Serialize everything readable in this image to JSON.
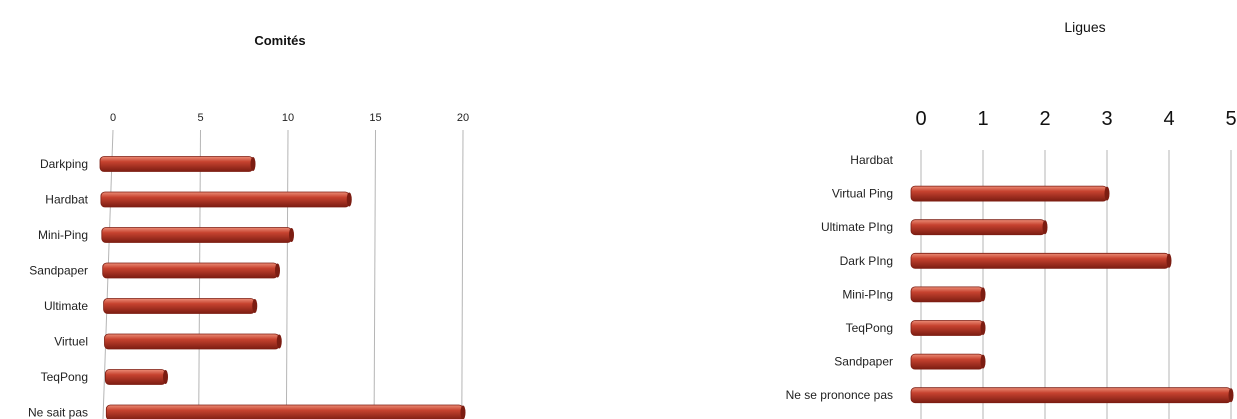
{
  "colors": {
    "bar": "#c6422f",
    "bar_light": "#ec8d77",
    "bar_dark": "#7c1d12",
    "grid": "#b5b5b5"
  },
  "chart_data": [
    {
      "type": "bar",
      "orientation": "horizontal",
      "title": "Comités",
      "categories": [
        "Darkping",
        "Hardbat",
        "Mini-Ping",
        "Sandpaper",
        "Ultimate",
        "Virtuel",
        "TeqPong",
        "Ne sait pas"
      ],
      "values": [
        8,
        13.5,
        10.2,
        9.4,
        8.1,
        9.5,
        3,
        20
      ],
      "xlim": [
        0,
        20
      ],
      "ticks": [
        "0",
        "5",
        "10",
        "15",
        "20"
      ],
      "grid": true,
      "axis_position": "top"
    },
    {
      "type": "bar",
      "orientation": "horizontal",
      "title": "Ligues",
      "categories": [
        "Hardbat",
        "Virtual Ping",
        "Ultimate PIng",
        "Dark PIng",
        "Mini-PIng",
        "TeqPong",
        "Sandpaper",
        "Ne se prononce pas"
      ],
      "values": [
        0,
        3,
        2,
        4,
        1,
        1,
        1,
        5
      ],
      "xlim": [
        0,
        5
      ],
      "ticks": [
        "0",
        "1",
        "2",
        "3",
        "4",
        "5"
      ],
      "grid": true,
      "axis_position": "top"
    }
  ]
}
